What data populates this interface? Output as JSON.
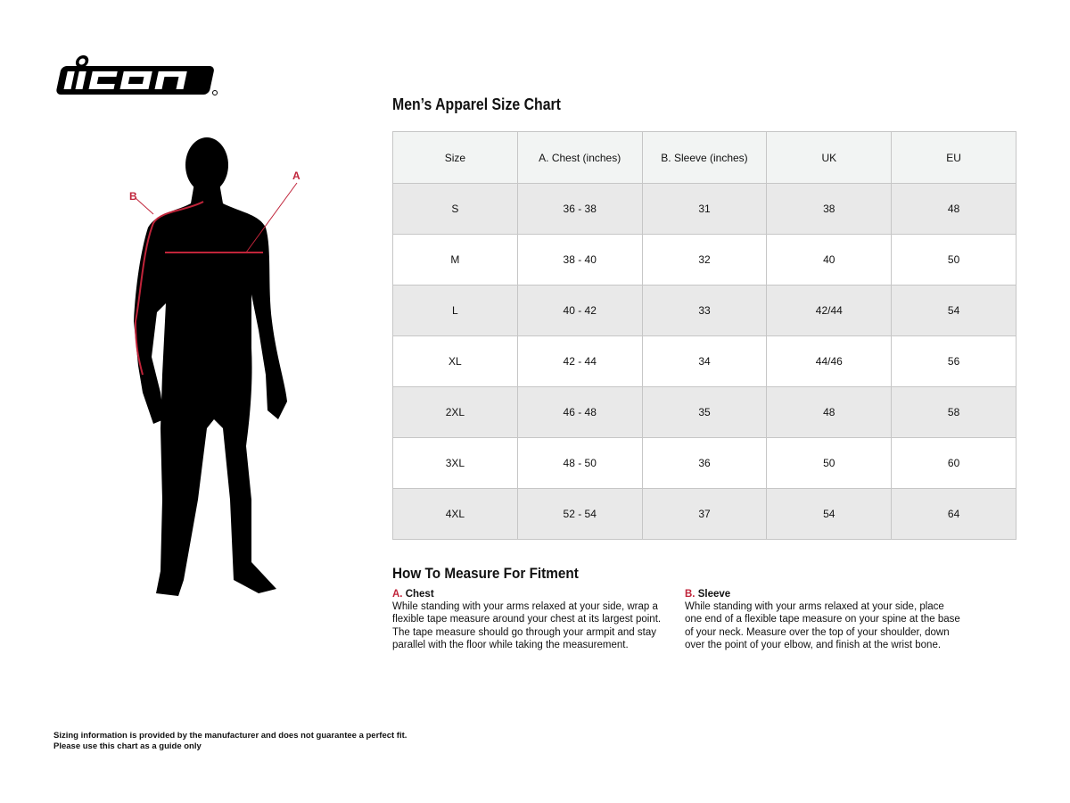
{
  "brand": {
    "logo_text": "ICON",
    "accent_color": "#c0243a"
  },
  "title": "Men’s Apparel Size Chart",
  "figure": {
    "label_a": "A",
    "label_b": "B"
  },
  "table": {
    "headers": [
      "Size",
      "A. Chest (inches)",
      "B. Sleeve (inches)",
      "UK",
      "EU"
    ],
    "rows": [
      [
        "S",
        "36 - 38",
        "31",
        "38",
        "48"
      ],
      [
        "M",
        "38 - 40",
        "32",
        "40",
        "50"
      ],
      [
        "L",
        "40 - 42",
        "33",
        "42/44",
        "54"
      ],
      [
        "XL",
        "42 - 44",
        "34",
        "44/46",
        "56"
      ],
      [
        "2XL",
        "46 - 48",
        "35",
        "48",
        "58"
      ],
      [
        "3XL",
        "48 - 50",
        "36",
        "50",
        "60"
      ],
      [
        "4XL",
        "52 - 54",
        "37",
        "54",
        "64"
      ]
    ]
  },
  "howto": {
    "title": "How To Measure For Fitment",
    "chest": {
      "letter": "A.",
      "name": "Chest",
      "text": "While standing with your arms relaxed at your side, wrap a flexible tape measure around your chest at its largest point. The tape measure should go through your armpit and stay parallel with the floor while taking the measurement."
    },
    "sleeve": {
      "letter": "B.",
      "name": "Sleeve",
      "text": "While standing with your arms relaxed at your side, place one end of a flexible tape measure on your spine at the base of your neck. Measure over the top of your shoulder, down over the point of your elbow, and finish at the wrist bone."
    }
  },
  "footer": {
    "line1": "Sizing information is provided by the manufacturer and does not guarantee a perfect fit.",
    "line2": "Please use this chart as a guide only"
  }
}
